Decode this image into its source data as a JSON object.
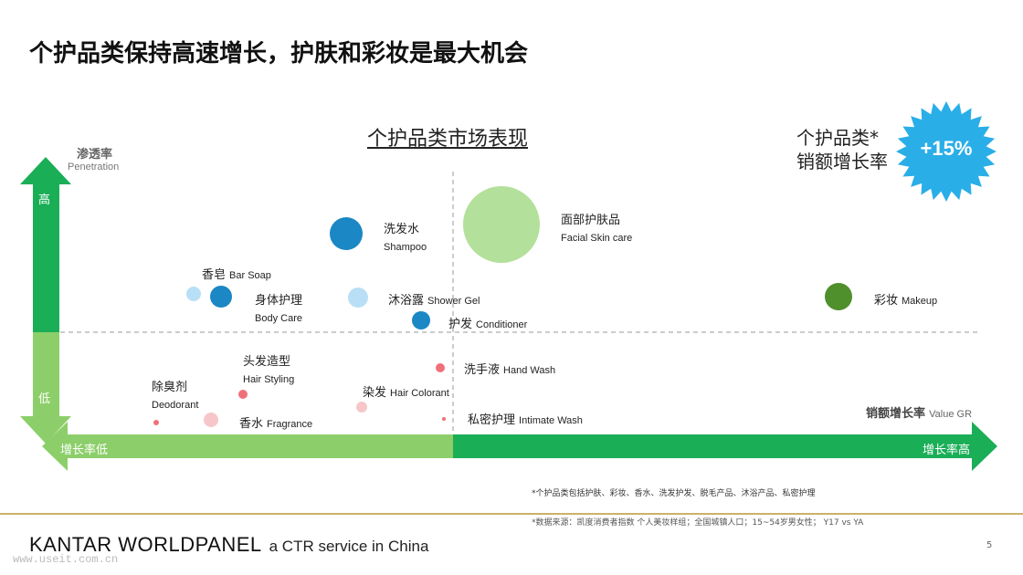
{
  "title": "个护品类保持高速增长，护肤和彩妆是最大机会",
  "chart_data": {
    "type": "scatter",
    "title": "个护品类市场表现",
    "y_axis": {
      "label_cn": "渗透率",
      "label_en": "Penetration",
      "high": "高",
      "low": "低"
    },
    "x_axis": {
      "low": "增长率低",
      "high": "增长率高",
      "label_cn": "销额增长率",
      "label_en": "Value GR"
    },
    "points": [
      {
        "cn": "洗发水",
        "en": "Shampoo",
        "color": "#1b87c4"
      },
      {
        "cn": "面部护肤品",
        "en": "Facial Skin care",
        "color": "#b3e09a"
      },
      {
        "cn": "香皂",
        "en": "Bar Soap",
        "color": "#b8dff5"
      },
      {
        "cn": "身体护理",
        "en": "Body Care",
        "color": "#1b87c4"
      },
      {
        "cn": "沐浴露",
        "en": "Shower Gel",
        "color": "#b8dff5"
      },
      {
        "cn": "护发",
        "en": "Conditioner",
        "color": "#1b87c4"
      },
      {
        "cn": "彩妆",
        "en": "Makeup",
        "color": "#4f8f2c"
      },
      {
        "cn": "头发造型",
        "en": "Hair Styling",
        "color": "#f0707a"
      },
      {
        "cn": "除臭剂",
        "en": "Deodorant",
        "color": "#f0707a"
      },
      {
        "cn": "香水",
        "en": "Fragrance",
        "color": "#f7c6c9"
      },
      {
        "cn": "染发",
        "en": "Hair Colorant",
        "color": "#f7c6c9"
      },
      {
        "cn": "洗手液",
        "en": "Hand Wash",
        "color": "#f0707a"
      },
      {
        "cn": "私密护理",
        "en": "Intimate Wash",
        "color": "#f0707a"
      }
    ]
  },
  "kpi": {
    "label_line1": "个护品类*",
    "label_line2": "销额增长率",
    "value": "+15%",
    "badge_color": "#2aaee8"
  },
  "notes": {
    "category_note": "*个护品类包括护肤、彩妆、香水、洗发护发、脱毛产品、沐浴产品、私密护理",
    "source_note": "*数据来源：凯度消费者指数 个人美妆样组；全国城镇人口；15~54岁男女性； Y17 vs YA"
  },
  "footer": {
    "brand": "KANTAR WORLDPANEL",
    "tagline": "a CTR service in China",
    "page": "5",
    "watermark": "www.useit.com.cn"
  }
}
